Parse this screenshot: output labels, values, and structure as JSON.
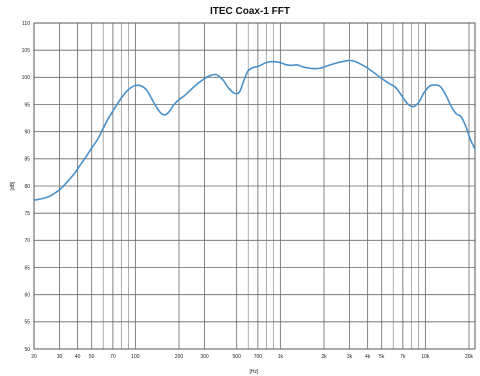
{
  "chart_data": {
    "type": "line",
    "title": "ITEC Coax-1 FFT",
    "xlabel": "[Hz]",
    "ylabel": "[dB]",
    "xscale": "log",
    "xlim": [
      20,
      22000
    ],
    "ylim": [
      50,
      110
    ],
    "grid": true,
    "legend": "none",
    "line_color": "#4a90c8",
    "x_ticks": [
      {
        "value": 20,
        "label": "20"
      },
      {
        "value": 30,
        "label": "30"
      },
      {
        "value": 40,
        "label": "40"
      },
      {
        "value": 50,
        "label": "50"
      },
      {
        "value": 70,
        "label": "70"
      },
      {
        "value": 100,
        "label": "100"
      },
      {
        "value": 200,
        "label": "200"
      },
      {
        "value": 300,
        "label": "300"
      },
      {
        "value": 500,
        "label": "500"
      },
      {
        "value": 700,
        "label": "700"
      },
      {
        "value": 1000,
        "label": "1k"
      },
      {
        "value": 2000,
        "label": "2k"
      },
      {
        "value": 3000,
        "label": "3k"
      },
      {
        "value": 4000,
        "label": "4k"
      },
      {
        "value": 5000,
        "label": "5k"
      },
      {
        "value": 7000,
        "label": "7k"
      },
      {
        "value": 10000,
        "label": "10k"
      },
      {
        "value": 20000,
        "label": "20k"
      }
    ],
    "y_ticks": [
      {
        "value": 50,
        "label": "50"
      },
      {
        "value": 55,
        "label": "55"
      },
      {
        "value": 60,
        "label": "60"
      },
      {
        "value": 65,
        "label": "65"
      },
      {
        "value": 70,
        "label": "70"
      },
      {
        "value": 75,
        "label": "75"
      },
      {
        "value": 80,
        "label": "80"
      },
      {
        "value": 85,
        "label": "85"
      },
      {
        "value": 90,
        "label": "90"
      },
      {
        "value": 95,
        "label": "95"
      },
      {
        "value": 100,
        "label": "100"
      },
      {
        "value": 105,
        "label": "105"
      },
      {
        "value": 110,
        "label": "110"
      }
    ],
    "minor_x": [
      60,
      80,
      90,
      600,
      800,
      900,
      6000,
      8000,
      9000
    ],
    "series": [
      {
        "x": [
          20,
          23,
          26,
          30,
          34,
          38,
          42,
          46,
          50,
          55,
          60,
          65,
          70,
          80,
          90,
          100,
          110,
          120,
          130,
          140,
          150,
          160,
          170,
          185,
          200,
          220,
          250,
          280,
          320,
          360,
          400,
          440,
          480,
          520,
          560,
          600,
          650,
          700,
          800,
          900,
          1000,
          1100,
          1200,
          1300,
          1400,
          1500,
          1700,
          1900,
          2100,
          2400,
          2700,
          3000,
          3300,
          3600,
          4000,
          4500,
          5000,
          5600,
          6200,
          6800,
          7500,
          8200,
          9000,
          9800,
          10700,
          11700,
          12700,
          13800,
          15000,
          16300,
          17600,
          19000,
          20500,
          22000
        ],
        "y": [
          77.4,
          77.7,
          78.2,
          79.3,
          80.8,
          82.3,
          84,
          85.5,
          87,
          88.6,
          90.6,
          92.4,
          93.8,
          96.2,
          97.8,
          98.5,
          98.4,
          97.6,
          96,
          94.5,
          93.4,
          93.1,
          93.6,
          95,
          95.9,
          96.7,
          98.1,
          99.2,
          100.2,
          100.5,
          99.6,
          98,
          97.1,
          97.2,
          99.4,
          101.2,
          101.8,
          102,
          102.7,
          102.9,
          102.7,
          102.3,
          102.2,
          102.3,
          102,
          101.8,
          101.6,
          101.7,
          102.1,
          102.6,
          102.9,
          103.1,
          102.9,
          102.4,
          101.7,
          100.7,
          99.8,
          98.9,
          98.2,
          96.8,
          95.2,
          94.6,
          95.4,
          97.2,
          98.4,
          98.6,
          98.3,
          96.8,
          94.8,
          93.3,
          92.8,
          91,
          88.5,
          86.8
        ]
      }
    ]
  }
}
